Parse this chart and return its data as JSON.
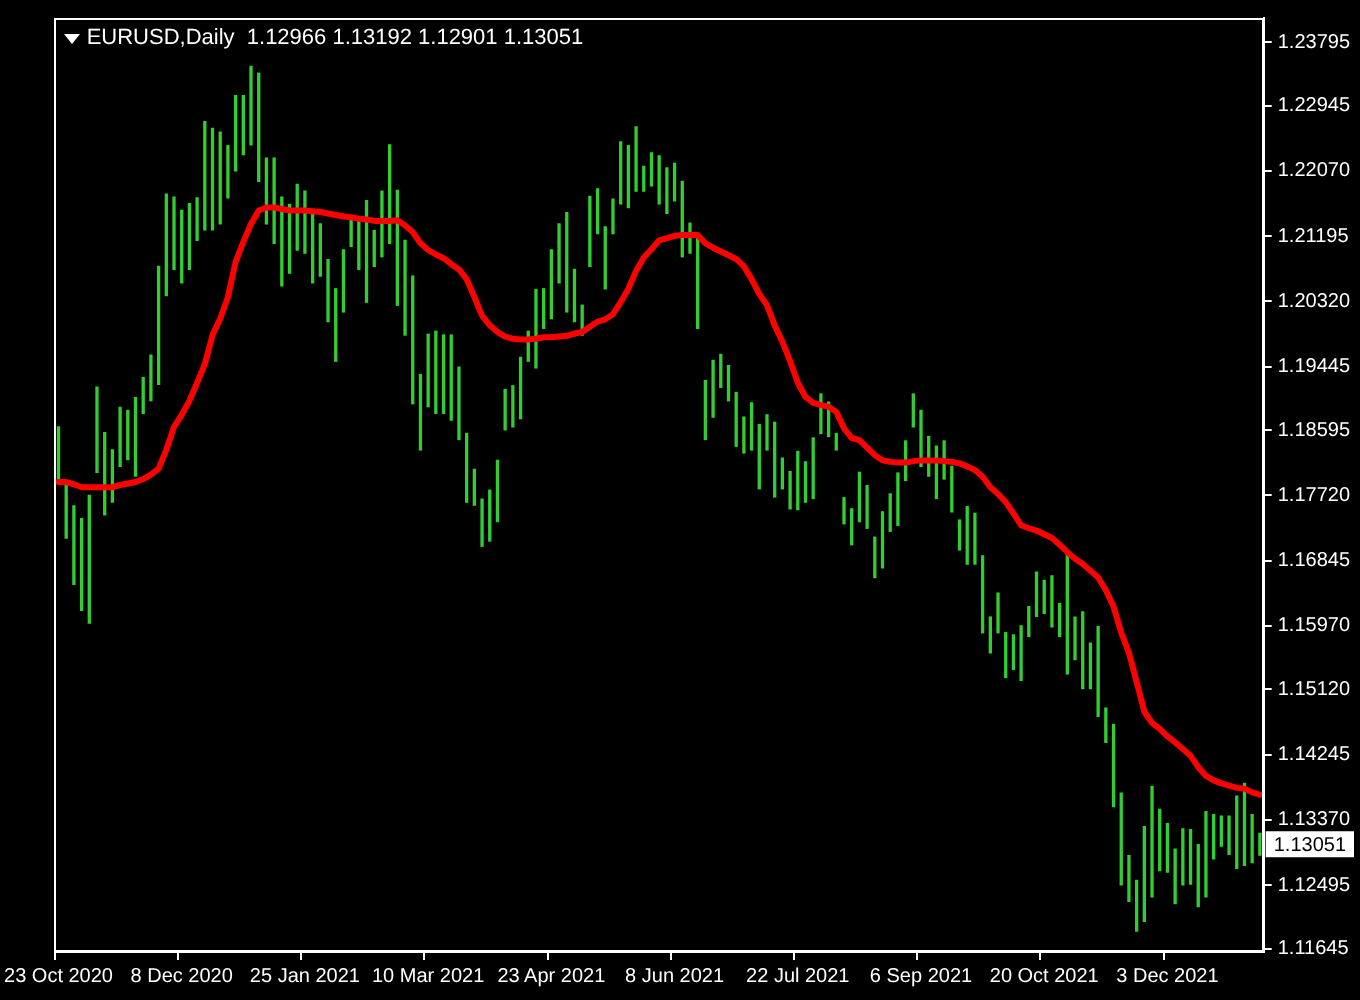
{
  "chart_data": {
    "type": "bar",
    "title": "EURUSD,Daily  1.12966 1.13192 1.12901 1.13051",
    "categories": [
      "23 Oct 2020",
      null,
      null,
      null,
      null,
      null,
      null,
      null,
      null,
      null,
      null,
      null,
      null,
      null,
      null,
      null,
      "8 Dec 2020",
      null,
      null,
      null,
      null,
      null,
      null,
      null,
      null,
      null,
      null,
      null,
      null,
      null,
      null,
      null,
      "25 Jan 2021",
      null,
      null,
      null,
      null,
      null,
      null,
      null,
      null,
      null,
      null,
      null,
      null,
      null,
      null,
      null,
      "10 Mar 2021",
      null,
      null,
      null,
      null,
      null,
      null,
      null,
      null,
      null,
      null,
      null,
      null,
      null,
      null,
      null,
      "23 Apr 2021",
      null,
      null,
      null,
      null,
      null,
      null,
      null,
      null,
      null,
      null,
      null,
      null,
      null,
      null,
      null,
      "8 Jun 2021",
      null,
      null,
      null,
      null,
      null,
      null,
      null,
      null,
      null,
      null,
      null,
      null,
      null,
      null,
      null,
      "22 Jul 2021",
      null,
      null,
      null,
      null,
      null,
      null,
      null,
      null,
      null,
      null,
      null,
      null,
      null,
      null,
      null,
      "6 Sep 2021",
      null,
      null,
      null,
      null,
      null,
      null,
      null,
      null,
      null,
      null,
      null,
      null,
      null,
      null,
      null,
      "20 Oct 2021",
      null,
      null,
      null,
      null,
      null,
      null,
      null,
      null,
      null,
      null,
      null,
      null,
      null,
      null,
      null,
      "3 Dec 2021",
      null,
      null,
      null,
      null,
      null,
      null,
      null,
      null,
      null,
      null,
      null,
      null
    ],
    "series": [
      {
        "color": "#32cd32",
        "base": [
          1.1792,
          1.1715,
          1.1653,
          1.1618,
          1.1601,
          1.1803,
          1.1746,
          1.1763,
          1.1811,
          1.182,
          1.1798,
          1.1882,
          1.1899,
          1.1921,
          1.204,
          1.2075,
          1.2057,
          1.2075,
          1.2114,
          1.2128,
          1.2128,
          1.2136,
          1.2171,
          1.2207,
          1.2229,
          1.2242,
          1.2193,
          1.2136,
          1.211,
          1.2053,
          1.207,
          1.2101,
          1.2097,
          1.2057,
          1.2066,
          1.2005,
          1.1952,
          1.2018,
          1.2106,
          1.2075,
          1.2031,
          1.2079,
          1.2092,
          1.211,
          1.2027,
          1.1987,
          1.1895,
          1.1833,
          1.1891,
          1.1882,
          1.1882,
          1.1873,
          1.1847,
          1.1763,
          1.1759,
          1.1704,
          1.1711,
          1.1737,
          1.186,
          1.1864,
          1.1875,
          1.1952,
          1.1943,
          1.1996,
          1.2009,
          1.2057,
          1.2018,
          1.2005,
          1.1987,
          1.2079,
          1.2123,
          1.2049,
          1.2123,
          1.2163,
          1.2158,
          1.218,
          1.218,
          1.2187,
          1.2163,
          1.215,
          1.2167,
          1.2092,
          1.2097,
          1.1996,
          1.1847,
          1.1877,
          1.1917,
          1.1899,
          1.1838,
          1.1829,
          1.1833,
          1.1781,
          1.1833,
          1.177,
          1.1781,
          1.1754,
          1.1753,
          1.1763,
          1.1768,
          1.1855,
          1.1851,
          1.1833,
          1.1734,
          1.1706,
          1.1737,
          1.1728,
          1.1662,
          1.1675,
          1.1724,
          1.1732,
          1.1792,
          1.1864,
          1.1811,
          1.1798,
          1.1768,
          1.1794,
          1.175,
          1.1699,
          1.168,
          1.168,
          1.1588,
          1.1561,
          1.1588,
          1.1528,
          1.1539,
          1.1524,
          1.1583,
          1.161,
          1.1614,
          1.1596,
          1.1583,
          1.1533,
          1.1552,
          1.1513,
          1.1513,
          1.1476,
          1.1441,
          1.1355,
          1.125,
          1.1228,
          1.1188,
          1.1201,
          1.1234,
          1.1269,
          1.1267,
          1.1225,
          1.125,
          1.1251,
          1.1221,
          1.1234,
          1.1285,
          1.1302,
          1.1291,
          1.1272,
          1.1276,
          1.128,
          1.129
        ],
        "values": [
          0.0072,
          0.0075,
          0.0105,
          0.0123,
          0.0171,
          0.0114,
          0.011,
          0.007,
          0.0079,
          0.0066,
          0.0105,
          0.0048,
          0.0061,
          0.0158,
          0.0136,
          0.0097,
          0.0097,
          0.0088,
          0.0057,
          0.0145,
          0.0136,
          0.0123,
          0.007,
          0.0101,
          0.0079,
          0.0105,
          0.0145,
          0.0088,
          0.0114,
          0.0119,
          0.0092,
          0.0088,
          0.0083,
          0.0097,
          0.007,
          0.0083,
          0.0097,
          0.0083,
          0.004,
          0.0066,
          0.0136,
          0.0048,
          0.0088,
          0.0132,
          0.0154,
          0.0127,
          0.0171,
          0.0101,
          0.0097,
          0.011,
          0.0105,
          0.0114,
          0.0097,
          0.0092,
          0.0048,
          0.0063,
          0.0068,
          0.0082,
          0.0054,
          0.0055,
          0.0082,
          0.004,
          0.0105,
          0.0053,
          0.0092,
          0.0079,
          0.0133,
          0.007,
          0.004,
          0.0094,
          0.006,
          0.0083,
          0.0046,
          0.0083,
          0.0083,
          0.0086,
          0.0033,
          0.0044,
          0.0064,
          0.0061,
          0.005,
          0.0101,
          0.004,
          0.0123,
          0.0079,
          0.0076,
          0.0044,
          0.0047,
          0.0072,
          0.0048,
          0.0063,
          0.0086,
          0.0047,
          0.01,
          0.0041,
          0.005,
          0.0078,
          0.0054,
          0.0081,
          0.0053,
          0.0046,
          0.0022,
          0.0035,
          0.0048,
          0.0066,
          0.0057,
          0.0054,
          0.0075,
          0.005,
          0.007,
          0.0053,
          0.0044,
          0.0075,
          0.0053,
          0.007,
          0.0051,
          0.0061,
          0.004,
          0.0077,
          0.0068,
          0.0103,
          0.0048,
          0.0053,
          0.006,
          0.0046,
          0.0073,
          0.004,
          0.0059,
          0.0044,
          0.0068,
          0.0044,
          0.0162,
          0.0057,
          0.0103,
          0.0061,
          0.012,
          0.0046,
          0.011,
          0.0123,
          0.0061,
          0.0068,
          0.0127,
          0.0148,
          0.0082,
          0.0065,
          0.0073,
          0.0075,
          0.0073,
          0.0083,
          0.0114,
          0.0059,
          0.004,
          0.0051,
          0.0097,
          0.011,
          0.0064,
          0.0029
        ]
      },
      {
        "type": "line",
        "color": "#ff0000",
        "values": [
          1.179,
          1.179,
          1.1787,
          1.1783,
          1.1783,
          1.1783,
          1.1783,
          1.1783,
          1.1786,
          1.1788,
          1.179,
          1.1794,
          1.18,
          1.1808,
          1.1833,
          1.1864,
          1.188,
          1.1899,
          1.1923,
          1.1948,
          1.1987,
          1.2009,
          1.2038,
          1.2085,
          1.2112,
          1.2136,
          1.2154,
          1.2158,
          1.2158,
          1.2156,
          1.2154,
          1.2154,
          1.2154,
          1.2153,
          1.2152,
          1.215,
          1.2148,
          1.2146,
          1.2145,
          1.2143,
          1.2142,
          1.214,
          1.214,
          1.214,
          1.2141,
          1.2134,
          1.2125,
          1.211,
          1.2101,
          1.2095,
          1.209,
          1.2082,
          1.2075,
          1.2062,
          1.2038,
          1.2013,
          1.2,
          1.1991,
          1.1985,
          1.1982,
          1.1981,
          1.1981,
          1.1982,
          1.1984,
          1.1984,
          1.1985,
          1.1986,
          1.1989,
          1.1991,
          1.1998,
          1.2005,
          1.2008,
          1.2015,
          1.2031,
          1.2049,
          1.2073,
          1.2091,
          1.2102,
          1.2114,
          1.2117,
          1.212,
          1.2121,
          1.2121,
          1.2121,
          1.211,
          1.2104,
          1.2099,
          1.2094,
          1.2089,
          1.2079,
          1.2062,
          1.2042,
          1.2027,
          1.2,
          1.1978,
          1.1952,
          1.1923,
          1.1904,
          1.1896,
          1.1893,
          1.1891,
          1.1884,
          1.1862,
          1.1849,
          1.1846,
          1.1836,
          1.1826,
          1.1819,
          1.1817,
          1.1816,
          1.1816,
          1.1818,
          1.1819,
          1.1819,
          1.1819,
          1.1818,
          1.1817,
          1.1815,
          1.1811,
          1.1806,
          1.1797,
          1.1783,
          1.1774,
          1.1763,
          1.1748,
          1.1732,
          1.1728,
          1.1725,
          1.172,
          1.1715,
          1.1706,
          1.1696,
          1.1687,
          1.168,
          1.1671,
          1.1662,
          1.1645,
          1.1623,
          1.1588,
          1.1561,
          1.1522,
          1.1482,
          1.1467,
          1.1459,
          1.1449,
          1.1441,
          1.1432,
          1.1423,
          1.1408,
          1.1396,
          1.139,
          1.1386,
          1.1383,
          1.138,
          1.1379,
          1.1374,
          1.1371
        ]
      }
    ],
    "ylim": [
      1.116,
      1.2412
    ],
    "yticks": [
      1.23795,
      1.22945,
      {
        "value": 1.2207,
        "label": "1.22070"
      },
      1.21195,
      {
        "value": 1.2032,
        "label": "1.20320"
      },
      1.19445,
      1.18595,
      {
        "value": 1.1772,
        "label": "1.17720"
      },
      1.16845,
      {
        "value": 1.1597,
        "label": "1.15970"
      },
      {
        "value": 1.1512,
        "label": "1.15120"
      },
      1.14245,
      {
        "value": 1.1337,
        "label": "1.13370"
      },
      1.12495,
      1.11645
    ],
    "annotations": [
      "1.13051"
    ],
    "grid": false,
    "legend": false,
    "marker": "none"
  }
}
